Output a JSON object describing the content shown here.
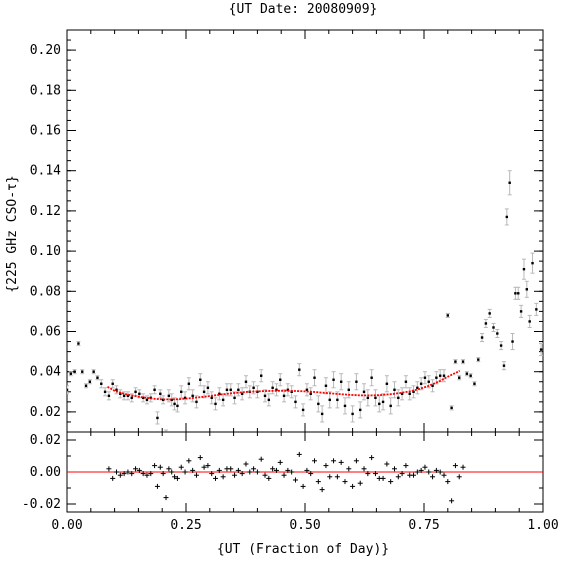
{
  "chart_data": {
    "title": "{UT Date: 20080909}",
    "xlabel": "{UT (Fraction of Day)}",
    "top_panel": {
      "type": "scatter",
      "ylabel": "{225 GHz CSO-τ}",
      "xlim": [
        0.0,
        1.0
      ],
      "ylim": [
        0.01,
        0.21
      ],
      "yticks": [
        "0.02",
        "0.04",
        "0.06",
        "0.08",
        "0.10",
        "0.12",
        "0.14",
        "0.16",
        "0.18",
        "0.20"
      ],
      "yticks_values": [
        0.02,
        0.04,
        0.06,
        0.08,
        0.1,
        0.12,
        0.14,
        0.16,
        0.18,
        0.2
      ],
      "points": [
        [
          0.0,
          0.031,
          0.002
        ],
        [
          0.008,
          0.039,
          0.001
        ],
        [
          0.016,
          0.04,
          0.001
        ],
        [
          0.024,
          0.054,
          0.001
        ],
        [
          0.032,
          0.04,
          0.001
        ],
        [
          0.04,
          0.033,
          0.001
        ],
        [
          0.048,
          0.035,
          0.001
        ],
        [
          0.056,
          0.04,
          0.001
        ],
        [
          0.064,
          0.037,
          0.001
        ],
        [
          0.072,
          0.034,
          0.002
        ],
        [
          0.08,
          0.03,
          0.002
        ],
        [
          0.088,
          0.028,
          0.002
        ],
        [
          0.096,
          0.034,
          0.002
        ],
        [
          0.104,
          0.031,
          0.002
        ],
        [
          0.112,
          0.029,
          0.002
        ],
        [
          0.12,
          0.028,
          0.002
        ],
        [
          0.128,
          0.028,
          0.002
        ],
        [
          0.136,
          0.027,
          0.002
        ],
        [
          0.144,
          0.03,
          0.002
        ],
        [
          0.152,
          0.029,
          0.002
        ],
        [
          0.16,
          0.027,
          0.002
        ],
        [
          0.168,
          0.026,
          0.002
        ],
        [
          0.176,
          0.027,
          0.002
        ],
        [
          0.184,
          0.031,
          0.002
        ],
        [
          0.19,
          0.017,
          0.003
        ],
        [
          0.196,
          0.029,
          0.002
        ],
        [
          0.202,
          0.026,
          0.002
        ],
        [
          0.208,
          0.009,
          0.002
        ],
        [
          0.214,
          0.028,
          0.003
        ],
        [
          0.22,
          0.026,
          0.003
        ],
        [
          0.226,
          0.024,
          0.003
        ],
        [
          0.232,
          0.023,
          0.003
        ],
        [
          0.24,
          0.03,
          0.003
        ],
        [
          0.248,
          0.027,
          0.003
        ],
        [
          0.256,
          0.034,
          0.003
        ],
        [
          0.264,
          0.028,
          0.003
        ],
        [
          0.272,
          0.025,
          0.003
        ],
        [
          0.28,
          0.036,
          0.003
        ],
        [
          0.288,
          0.03,
          0.003
        ],
        [
          0.296,
          0.032,
          0.003
        ],
        [
          0.304,
          0.027,
          0.003
        ],
        [
          0.312,
          0.024,
          0.003
        ],
        [
          0.32,
          0.029,
          0.003
        ],
        [
          0.328,
          0.026,
          0.003
        ],
        [
          0.336,
          0.031,
          0.003
        ],
        [
          0.344,
          0.031,
          0.003
        ],
        [
          0.352,
          0.027,
          0.003
        ],
        [
          0.36,
          0.031,
          0.003
        ],
        [
          0.368,
          0.029,
          0.003
        ],
        [
          0.376,
          0.035,
          0.003
        ],
        [
          0.384,
          0.03,
          0.003
        ],
        [
          0.392,
          0.032,
          0.003
        ],
        [
          0.4,
          0.03,
          0.003
        ],
        [
          0.408,
          0.038,
          0.003
        ],
        [
          0.416,
          0.028,
          0.003
        ],
        [
          0.424,
          0.026,
          0.003
        ],
        [
          0.432,
          0.032,
          0.003
        ],
        [
          0.44,
          0.031,
          0.003
        ],
        [
          0.448,
          0.036,
          0.003
        ],
        [
          0.456,
          0.028,
          0.003
        ],
        [
          0.464,
          0.031,
          0.003
        ],
        [
          0.472,
          0.03,
          0.003
        ],
        [
          0.48,
          0.025,
          0.003
        ],
        [
          0.488,
          0.041,
          0.003
        ],
        [
          0.496,
          0.021,
          0.003
        ],
        [
          0.504,
          0.031,
          0.003
        ],
        [
          0.512,
          0.029,
          0.003
        ],
        [
          0.52,
          0.037,
          0.004
        ],
        [
          0.528,
          0.024,
          0.004
        ],
        [
          0.536,
          0.019,
          0.004
        ],
        [
          0.544,
          0.033,
          0.004
        ],
        [
          0.552,
          0.026,
          0.004
        ],
        [
          0.56,
          0.036,
          0.004
        ],
        [
          0.568,
          0.026,
          0.004
        ],
        [
          0.576,
          0.035,
          0.004
        ],
        [
          0.584,
          0.023,
          0.004
        ],
        [
          0.592,
          0.031,
          0.004
        ],
        [
          0.6,
          0.019,
          0.004
        ],
        [
          0.608,
          0.035,
          0.004
        ],
        [
          0.616,
          0.021,
          0.004
        ],
        [
          0.624,
          0.03,
          0.004
        ],
        [
          0.632,
          0.027,
          0.004
        ],
        [
          0.64,
          0.037,
          0.004
        ],
        [
          0.648,
          0.027,
          0.004
        ],
        [
          0.656,
          0.024,
          0.004
        ],
        [
          0.664,
          0.025,
          0.004
        ],
        [
          0.672,
          0.034,
          0.004
        ],
        [
          0.68,
          0.023,
          0.004
        ],
        [
          0.688,
          0.031,
          0.004
        ],
        [
          0.696,
          0.027,
          0.004
        ],
        [
          0.704,
          0.029,
          0.003
        ],
        [
          0.712,
          0.035,
          0.003
        ],
        [
          0.72,
          0.029,
          0.003
        ],
        [
          0.728,
          0.03,
          0.003
        ],
        [
          0.736,
          0.032,
          0.003
        ],
        [
          0.744,
          0.034,
          0.003
        ],
        [
          0.752,
          0.037,
          0.003
        ],
        [
          0.76,
          0.035,
          0.003
        ],
        [
          0.768,
          0.033,
          0.003
        ],
        [
          0.776,
          0.037,
          0.003
        ],
        [
          0.784,
          0.038,
          0.003
        ],
        [
          0.792,
          0.038,
          0.003
        ],
        [
          0.8,
          0.068,
          0.001
        ],
        [
          0.808,
          0.022,
          0.001
        ],
        [
          0.816,
          0.045,
          0.001
        ],
        [
          0.824,
          0.037,
          0.001
        ],
        [
          0.832,
          0.045,
          0.001
        ],
        [
          0.84,
          0.039,
          0.001
        ],
        [
          0.848,
          0.038,
          0.001
        ],
        [
          0.856,
          0.034,
          0.001
        ],
        [
          0.864,
          0.046,
          0.001
        ],
        [
          0.872,
          0.057,
          0.002
        ],
        [
          0.88,
          0.064,
          0.002
        ],
        [
          0.888,
          0.069,
          0.002
        ],
        [
          0.896,
          0.062,
          0.002
        ],
        [
          0.904,
          0.059,
          0.002
        ],
        [
          0.912,
          0.053,
          0.002
        ],
        [
          0.918,
          0.043,
          0.002
        ],
        [
          0.924,
          0.117,
          0.004
        ],
        [
          0.93,
          0.134,
          0.006
        ],
        [
          0.936,
          0.055,
          0.004
        ],
        [
          0.942,
          0.079,
          0.003
        ],
        [
          0.948,
          0.079,
          0.003
        ],
        [
          0.954,
          0.07,
          0.003
        ],
        [
          0.96,
          0.091,
          0.005
        ],
        [
          0.966,
          0.081,
          0.004
        ],
        [
          0.972,
          0.065,
          0.003
        ],
        [
          0.978,
          0.094,
          0.005
        ],
        [
          0.986,
          0.071,
          0.003
        ],
        [
          0.996,
          0.051,
          0.003
        ]
      ],
      "fit_curve": {
        "color": "#ff0000",
        "x": [
          0.085,
          0.1,
          0.12,
          0.14,
          0.16,
          0.18,
          0.2,
          0.22,
          0.24,
          0.26,
          0.28,
          0.3,
          0.32,
          0.34,
          0.36,
          0.38,
          0.4,
          0.42,
          0.44,
          0.46,
          0.48,
          0.5,
          0.52,
          0.54,
          0.56,
          0.58,
          0.6,
          0.62,
          0.64,
          0.66,
          0.68,
          0.7,
          0.72,
          0.74,
          0.76,
          0.78,
          0.8,
          0.82,
          0.825
        ],
        "y": [
          0.0325,
          0.0305,
          0.029,
          0.028,
          0.0272,
          0.0266,
          0.0262,
          0.0262,
          0.0264,
          0.0268,
          0.0273,
          0.0279,
          0.0285,
          0.0291,
          0.0296,
          0.03,
          0.0302,
          0.0304,
          0.0305,
          0.0305,
          0.0304,
          0.0302,
          0.0299,
          0.0295,
          0.0291,
          0.0287,
          0.0284,
          0.0282,
          0.0282,
          0.0284,
          0.0288,
          0.0294,
          0.0302,
          0.0314,
          0.033,
          0.035,
          0.0375,
          0.0398,
          0.0405
        ]
      }
    },
    "bottom_panel": {
      "type": "scatter",
      "ylim": [
        -0.025,
        0.025
      ],
      "yticks": [
        "0.02",
        "0.00",
        "-0.02"
      ],
      "yticks_values": [
        0.02,
        0.0,
        -0.02
      ],
      "zero_line_color": "#ff0000",
      "residuals": [
        [
          0.088,
          0.002
        ],
        [
          0.096,
          -0.004
        ],
        [
          0.104,
          0.0
        ],
        [
          0.112,
          -0.002
        ],
        [
          0.12,
          -0.001
        ],
        [
          0.128,
          0.0
        ],
        [
          0.136,
          -0.001
        ],
        [
          0.144,
          0.002
        ],
        [
          0.152,
          0.001
        ],
        [
          0.16,
          -0.001
        ],
        [
          0.168,
          -0.002
        ],
        [
          0.176,
          -0.001
        ],
        [
          0.184,
          0.004
        ],
        [
          0.19,
          -0.009
        ],
        [
          0.196,
          0.003
        ],
        [
          0.202,
          -0.001
        ],
        [
          0.208,
          -0.016
        ],
        [
          0.214,
          0.002
        ],
        [
          0.22,
          0.0
        ],
        [
          0.226,
          -0.003
        ],
        [
          0.232,
          -0.004
        ],
        [
          0.24,
          0.003
        ],
        [
          0.248,
          0.0
        ],
        [
          0.256,
          0.007
        ],
        [
          0.264,
          0.001
        ],
        [
          0.272,
          -0.002
        ],
        [
          0.28,
          0.009
        ],
        [
          0.288,
          0.003
        ],
        [
          0.296,
          0.004
        ],
        [
          0.304,
          -0.001
        ],
        [
          0.312,
          -0.004
        ],
        [
          0.32,
          0.001
        ],
        [
          0.328,
          -0.003
        ],
        [
          0.336,
          0.002
        ],
        [
          0.344,
          0.002
        ],
        [
          0.352,
          -0.002
        ],
        [
          0.36,
          0.001
        ],
        [
          0.368,
          -0.001
        ],
        [
          0.376,
          0.005
        ],
        [
          0.384,
          0.0
        ],
        [
          0.392,
          0.002
        ],
        [
          0.4,
          0.0
        ],
        [
          0.408,
          0.008
        ],
        [
          0.416,
          -0.002
        ],
        [
          0.424,
          -0.004
        ],
        [
          0.432,
          0.002
        ],
        [
          0.44,
          0.001
        ],
        [
          0.448,
          0.006
        ],
        [
          0.456,
          -0.002
        ],
        [
          0.464,
          0.001
        ],
        [
          0.472,
          0.0
        ],
        [
          0.48,
          -0.005
        ],
        [
          0.488,
          0.011
        ],
        [
          0.496,
          -0.009
        ],
        [
          0.504,
          0.001
        ],
        [
          0.512,
          -0.001
        ],
        [
          0.52,
          0.007
        ],
        [
          0.528,
          -0.006
        ],
        [
          0.536,
          -0.011
        ],
        [
          0.544,
          0.004
        ],
        [
          0.552,
          -0.003
        ],
        [
          0.56,
          0.007
        ],
        [
          0.568,
          -0.003
        ],
        [
          0.576,
          0.006
        ],
        [
          0.584,
          -0.006
        ],
        [
          0.592,
          0.002
        ],
        [
          0.6,
          -0.009
        ],
        [
          0.608,
          0.007
        ],
        [
          0.616,
          -0.007
        ],
        [
          0.624,
          0.002
        ],
        [
          0.632,
          -0.001
        ],
        [
          0.64,
          0.009
        ],
        [
          0.648,
          -0.001
        ],
        [
          0.656,
          -0.004
        ],
        [
          0.664,
          -0.004
        ],
        [
          0.672,
          0.005
        ],
        [
          0.68,
          -0.006
        ],
        [
          0.688,
          0.002
        ],
        [
          0.696,
          -0.003
        ],
        [
          0.704,
          -0.001
        ],
        [
          0.712,
          0.004
        ],
        [
          0.72,
          -0.002
        ],
        [
          0.728,
          -0.002
        ],
        [
          0.736,
          0.0
        ],
        [
          0.744,
          0.001
        ],
        [
          0.752,
          0.003
        ],
        [
          0.76,
          0.0
        ],
        [
          0.768,
          -0.003
        ],
        [
          0.776,
          0.001
        ],
        [
          0.784,
          0.0
        ],
        [
          0.792,
          -0.002
        ],
        [
          0.8,
          -0.006
        ],
        [
          0.808,
          -0.018
        ],
        [
          0.816,
          0.004
        ],
        [
          0.824,
          -0.003
        ],
        [
          0.832,
          0.003
        ]
      ]
    },
    "xticks": [
      "0.00",
      "0.25",
      "0.50",
      "0.75",
      "1.00"
    ],
    "xticks_values": [
      0.0,
      0.25,
      0.5,
      0.75,
      1.0
    ],
    "grid": false,
    "legend": "none"
  }
}
